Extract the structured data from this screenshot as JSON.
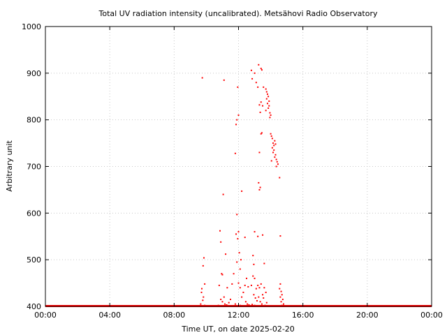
{
  "chart_data": {
    "type": "scatter",
    "title": "Total UV radiation intensity (uncalibrated). Metsähovi Radio Observatory",
    "xlabel": "Time UT, on date 2025-02-20",
    "ylabel": "Arbitrary unit",
    "xlim": [
      0,
      24
    ],
    "ylim": [
      400,
      1000
    ],
    "x_ticks": [
      {
        "value": 0,
        "label": "00:00"
      },
      {
        "value": 4,
        "label": "04:00"
      },
      {
        "value": 8,
        "label": "08:00"
      },
      {
        "value": 12,
        "label": "12:00"
      },
      {
        "value": 16,
        "label": "16:00"
      },
      {
        "value": 20,
        "label": "20:00"
      },
      {
        "value": 24,
        "label": "00:00"
      }
    ],
    "y_ticks": [
      {
        "value": 400,
        "label": "400"
      },
      {
        "value": 500,
        "label": "500"
      },
      {
        "value": 600,
        "label": "600"
      },
      {
        "value": 700,
        "label": "700"
      },
      {
        "value": 800,
        "label": "800"
      },
      {
        "value": 900,
        "label": "900"
      },
      {
        "value": 1000,
        "label": "1000"
      }
    ],
    "grid": true,
    "baseline": {
      "value": 400,
      "from": 0,
      "to": 24
    },
    "color": "#ff0000",
    "series": [
      {
        "points": [
          [
            9.75,
            890
          ],
          [
            9.8,
            487
          ],
          [
            9.85,
            504
          ],
          [
            9.9,
            448
          ],
          [
            9.72,
            438
          ],
          [
            9.7,
            430
          ],
          [
            9.78,
            413
          ],
          [
            9.82,
            420
          ],
          [
            9.65,
            405
          ],
          [
            9.9,
            402
          ],
          [
            10.0,
            401
          ],
          [
            10.1,
            401
          ],
          [
            10.85,
            562
          ],
          [
            10.9,
            538
          ],
          [
            10.95,
            470
          ],
          [
            11.0,
            468
          ],
          [
            11.05,
            640
          ],
          [
            11.1,
            885
          ],
          [
            11.2,
            512
          ],
          [
            11.3,
            440
          ],
          [
            10.8,
            445
          ],
          [
            10.9,
            415
          ],
          [
            11.0,
            410
          ],
          [
            11.1,
            420
          ],
          [
            11.15,
            405
          ],
          [
            11.3,
            402
          ],
          [
            11.4,
            408
          ],
          [
            11.5,
            415
          ],
          [
            11.6,
            448
          ],
          [
            11.7,
            470
          ],
          [
            11.8,
            405
          ],
          [
            10.75,
            402
          ],
          [
            11.25,
            403
          ],
          [
            11.45,
            401
          ],
          [
            11.8,
            728
          ],
          [
            11.85,
            790
          ],
          [
            11.9,
            800
          ],
          [
            12.0,
            810
          ],
          [
            11.95,
            870
          ],
          [
            11.9,
            597
          ],
          [
            12.0,
            560
          ],
          [
            11.85,
            555
          ],
          [
            11.95,
            545
          ],
          [
            12.05,
            515
          ],
          [
            11.9,
            495
          ],
          [
            12.1,
            480
          ],
          [
            12.15,
            500
          ],
          [
            12.2,
            647
          ],
          [
            12.4,
            548
          ],
          [
            12.5,
            460
          ],
          [
            12.0,
            450
          ],
          [
            12.1,
            440
          ],
          [
            12.3,
            430
          ],
          [
            12.4,
            445
          ],
          [
            12.6,
            442
          ],
          [
            12.2,
            420
          ],
          [
            12.45,
            410
          ],
          [
            12.55,
            405
          ],
          [
            12.1,
            402
          ],
          [
            12.25,
            401
          ],
          [
            12.65,
            403
          ],
          [
            12.8,
            906
          ],
          [
            12.85,
            888
          ],
          [
            13.0,
            900
          ],
          [
            13.1,
            880
          ],
          [
            13.2,
            870
          ],
          [
            13.25,
            918
          ],
          [
            13.4,
            910
          ],
          [
            13.45,
            907
          ],
          [
            13.3,
            832
          ],
          [
            13.35,
            816
          ],
          [
            13.4,
            838
          ],
          [
            13.5,
            830
          ],
          [
            13.45,
            772
          ],
          [
            13.4,
            770
          ],
          [
            13.3,
            730
          ],
          [
            13.25,
            665
          ],
          [
            13.3,
            650
          ],
          [
            13.35,
            655
          ],
          [
            13.0,
            560
          ],
          [
            13.2,
            550
          ],
          [
            13.5,
            553
          ],
          [
            13.6,
            492
          ],
          [
            12.9,
            509
          ],
          [
            12.95,
            490
          ],
          [
            12.9,
            465
          ],
          [
            13.0,
            460
          ],
          [
            12.8,
            445
          ],
          [
            13.1,
            438
          ],
          [
            13.2,
            445
          ],
          [
            13.3,
            440
          ],
          [
            13.4,
            448
          ],
          [
            13.5,
            425
          ],
          [
            13.6,
            440
          ],
          [
            13.7,
            430
          ],
          [
            12.95,
            425
          ],
          [
            13.05,
            418
          ],
          [
            13.15,
            412
          ],
          [
            13.25,
            420
          ],
          [
            13.35,
            410
          ],
          [
            13.45,
            405
          ],
          [
            13.55,
            418
          ],
          [
            13.65,
            402
          ],
          [
            13.75,
            408
          ],
          [
            12.85,
            404
          ],
          [
            13.0,
            402
          ],
          [
            13.1,
            401
          ],
          [
            13.3,
            401
          ],
          [
            13.5,
            401
          ],
          [
            13.7,
            401
          ],
          [
            13.55,
            870
          ],
          [
            13.7,
            866
          ],
          [
            13.75,
            860
          ],
          [
            13.8,
            855
          ],
          [
            13.85,
            850
          ],
          [
            13.75,
            845
          ],
          [
            13.9,
            840
          ],
          [
            13.8,
            835
          ],
          [
            13.9,
            830
          ],
          [
            13.85,
            825
          ],
          [
            13.7,
            820
          ],
          [
            13.95,
            815
          ],
          [
            14.0,
            810
          ],
          [
            13.95,
            805
          ],
          [
            14.0,
            770
          ],
          [
            14.05,
            765
          ],
          [
            14.1,
            760
          ],
          [
            14.15,
            750
          ],
          [
            14.2,
            745
          ],
          [
            14.25,
            755
          ],
          [
            14.1,
            740
          ],
          [
            14.3,
            748
          ],
          [
            14.2,
            735
          ],
          [
            14.15,
            730
          ],
          [
            14.3,
            725
          ],
          [
            14.25,
            720
          ],
          [
            14.35,
            715
          ],
          [
            14.05,
            712
          ],
          [
            14.4,
            710
          ],
          [
            14.45,
            705
          ],
          [
            14.35,
            700
          ],
          [
            14.55,
            676
          ],
          [
            14.6,
            551
          ],
          [
            14.6,
            448
          ],
          [
            14.55,
            438
          ],
          [
            14.65,
            432
          ],
          [
            14.7,
            425
          ],
          [
            14.6,
            420
          ],
          [
            14.75,
            415
          ],
          [
            14.65,
            410
          ],
          [
            14.8,
            405
          ],
          [
            14.7,
            402
          ],
          [
            14.85,
            401
          ]
        ]
      }
    ]
  }
}
